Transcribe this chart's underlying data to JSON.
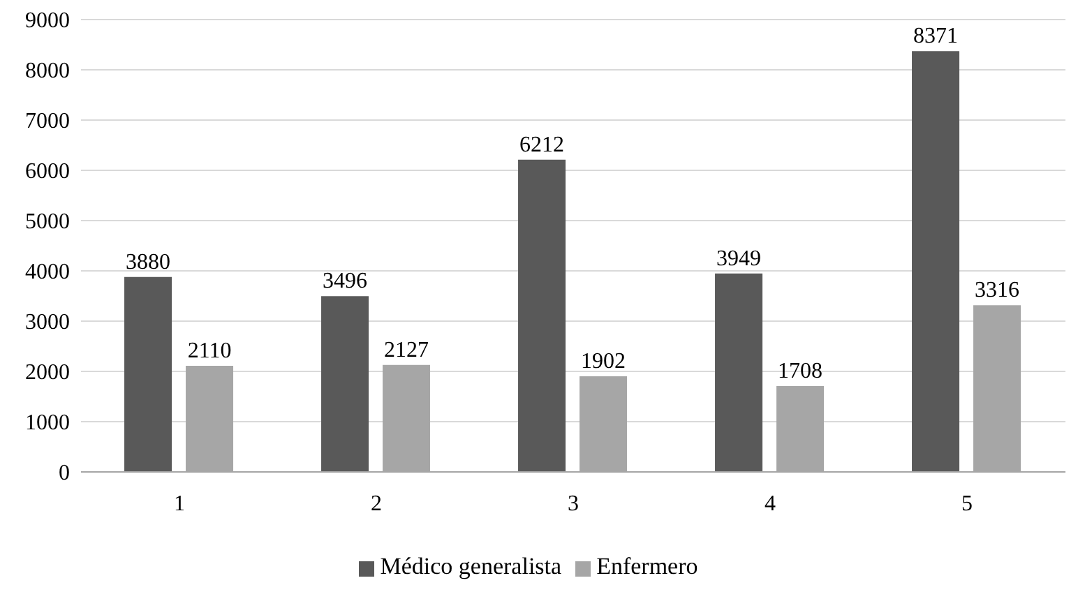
{
  "chart_data": {
    "type": "bar",
    "categories": [
      "1",
      "2",
      "3",
      "4",
      "5"
    ],
    "series": [
      {
        "name": "Médico generalista",
        "color": "#595959",
        "values": [
          3880,
          3496,
          6212,
          3949,
          8371
        ]
      },
      {
        "name": "Enfermero",
        "color": "#a6a6a6",
        "values": [
          2110,
          2127,
          1902,
          1708,
          3316
        ]
      }
    ],
    "ylim": [
      0,
      9000
    ],
    "yticks": [
      0,
      1000,
      2000,
      3000,
      4000,
      5000,
      6000,
      7000,
      8000,
      9000
    ],
    "grid": "y",
    "legend": "bottom",
    "data_labels": true
  }
}
